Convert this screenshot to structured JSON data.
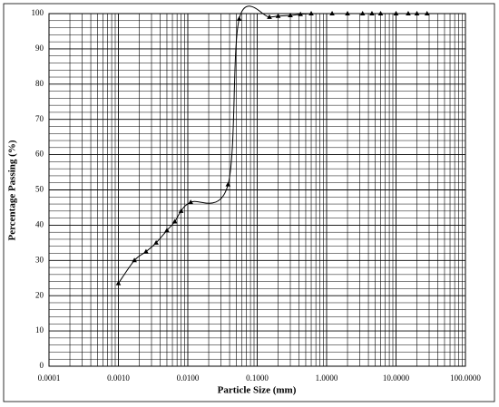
{
  "chart_data": {
    "type": "line",
    "x_label": "Particle Size (mm)",
    "y_label": "Percentage Passing (%)",
    "x_scale": "log",
    "grid": true,
    "minor_grid": true,
    "xlim": [
      0.0001,
      100
    ],
    "ylim": [
      0,
      100
    ],
    "xticks": [
      {
        "value": 0.0001,
        "label": "0.0001"
      },
      {
        "value": 0.001,
        "label": "0.0010"
      },
      {
        "value": 0.01,
        "label": "0.0100"
      },
      {
        "value": 0.1,
        "label": "0.1000"
      },
      {
        "value": 1,
        "label": "1.0000"
      },
      {
        "value": 10,
        "label": "10.0000"
      },
      {
        "value": 100,
        "label": "100.0000"
      }
    ],
    "yticks": [
      0,
      10,
      20,
      30,
      40,
      50,
      60,
      70,
      80,
      90,
      100
    ],
    "series": [
      {
        "color": "#000000",
        "x": [
          0.001,
          0.0017,
          0.0025,
          0.0035,
          0.005,
          0.0065,
          0.008,
          0.011,
          0.038,
          0.055,
          0.15,
          0.2,
          0.3,
          0.42,
          0.6,
          1.2,
          2,
          3.3,
          4.5,
          6,
          10,
          15,
          20,
          28
        ],
        "values": [
          23.5,
          30,
          32.5,
          35,
          38.5,
          41,
          44,
          46.5,
          51.5,
          98.5,
          99,
          99.3,
          99.5,
          99.8,
          100,
          100,
          100,
          100,
          100,
          100,
          100,
          100,
          100,
          100
        ]
      }
    ]
  }
}
